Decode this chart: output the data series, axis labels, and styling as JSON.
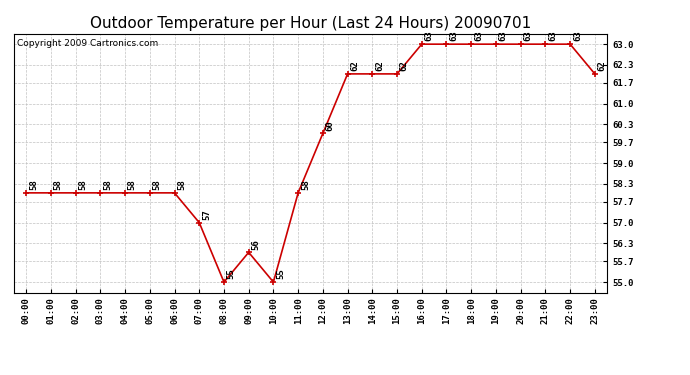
{
  "title": "Outdoor Temperature per Hour (Last 24 Hours) 20090701",
  "copyright": "Copyright 2009 Cartronics.com",
  "hours": [
    0,
    1,
    2,
    3,
    4,
    5,
    6,
    7,
    8,
    9,
    10,
    11,
    12,
    13,
    14,
    15,
    16,
    17,
    18,
    19,
    20,
    21,
    22,
    23
  ],
  "temps": [
    58,
    58,
    58,
    58,
    58,
    58,
    58,
    57,
    55,
    56,
    55,
    58,
    60,
    62,
    62,
    62,
    63,
    63,
    63,
    63,
    63,
    63,
    63,
    62
  ],
  "hour_labels": [
    "00:00",
    "01:00",
    "02:00",
    "03:00",
    "04:00",
    "05:00",
    "06:00",
    "07:00",
    "08:00",
    "09:00",
    "10:00",
    "11:00",
    "12:00",
    "13:00",
    "14:00",
    "15:00",
    "16:00",
    "17:00",
    "18:00",
    "19:00",
    "20:00",
    "21:00",
    "22:00",
    "23:00"
  ],
  "ytick_values": [
    55.0,
    55.7,
    56.3,
    57.0,
    57.7,
    58.3,
    59.0,
    59.7,
    60.3,
    61.0,
    61.7,
    62.3,
    63.0
  ],
  "ytick_labels": [
    "55.0",
    "55.7",
    "56.3",
    "57.0",
    "57.7",
    "58.3",
    "59.0",
    "59.7",
    "60.3",
    "61.0",
    "61.7",
    "62.3",
    "63.0"
  ],
  "ylim_bottom": 54.65,
  "ylim_top": 63.35,
  "xlim_left": -0.5,
  "xlim_right": 23.5,
  "line_color": "#cc0000",
  "bg_color": "#ffffff",
  "grid_color": "#bbbbbb",
  "annotation_fontsize": 6.5,
  "title_fontsize": 11,
  "tick_fontsize": 6.5,
  "copyright_fontsize": 6.5
}
